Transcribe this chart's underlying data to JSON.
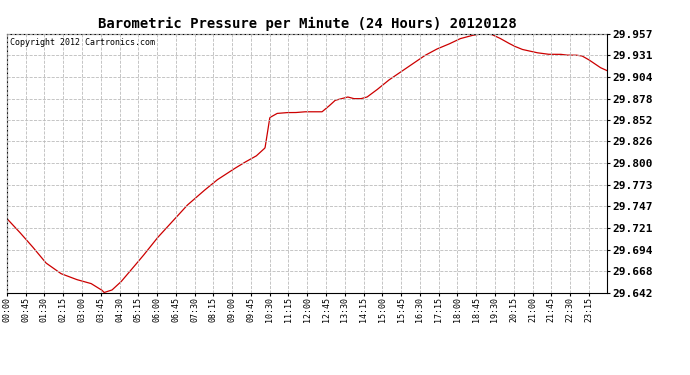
{
  "title": "Barometric Pressure per Minute (24 Hours) 20120128",
  "copyright": "Copyright 2012 Cartronics.com",
  "line_color": "#cc0000",
  "background_color": "#ffffff",
  "plot_bg_color": "#ffffff",
  "grid_color": "#bbbbbb",
  "ylim": [
    29.642,
    29.957
  ],
  "yticks": [
    29.642,
    29.668,
    29.694,
    29.721,
    29.747,
    29.773,
    29.8,
    29.826,
    29.852,
    29.878,
    29.904,
    29.931,
    29.957
  ],
  "xtick_labels": [
    "00:00",
    "00:45",
    "01:30",
    "02:15",
    "03:00",
    "03:45",
    "04:30",
    "05:15",
    "06:00",
    "06:45",
    "07:30",
    "08:15",
    "09:00",
    "09:45",
    "10:30",
    "11:15",
    "12:00",
    "12:45",
    "13:30",
    "14:15",
    "15:00",
    "15:45",
    "16:30",
    "17:15",
    "18:00",
    "18:45",
    "19:30",
    "20:15",
    "21:00",
    "21:45",
    "22:30",
    "23:15"
  ],
  "keypoints": [
    [
      0.0,
      29.732
    ],
    [
      0.018,
      29.718
    ],
    [
      0.04,
      29.7
    ],
    [
      0.065,
      29.678
    ],
    [
      0.09,
      29.665
    ],
    [
      0.115,
      29.658
    ],
    [
      0.14,
      29.653
    ],
    [
      0.158,
      29.645
    ],
    [
      0.162,
      29.642
    ],
    [
      0.175,
      29.645
    ],
    [
      0.19,
      29.655
    ],
    [
      0.205,
      29.668
    ],
    [
      0.225,
      29.685
    ],
    [
      0.25,
      29.708
    ],
    [
      0.275,
      29.728
    ],
    [
      0.3,
      29.748
    ],
    [
      0.325,
      29.764
    ],
    [
      0.35,
      29.779
    ],
    [
      0.375,
      29.791
    ],
    [
      0.395,
      29.8
    ],
    [
      0.415,
      29.808
    ],
    [
      0.43,
      29.818
    ],
    [
      0.438,
      29.855
    ],
    [
      0.45,
      29.86
    ],
    [
      0.465,
      29.861
    ],
    [
      0.48,
      29.861
    ],
    [
      0.495,
      29.862
    ],
    [
      0.51,
      29.862
    ],
    [
      0.525,
      29.862
    ],
    [
      0.535,
      29.868
    ],
    [
      0.547,
      29.876
    ],
    [
      0.558,
      29.878
    ],
    [
      0.568,
      29.88
    ],
    [
      0.578,
      29.878
    ],
    [
      0.59,
      29.878
    ],
    [
      0.6,
      29.88
    ],
    [
      0.615,
      29.888
    ],
    [
      0.635,
      29.9
    ],
    [
      0.655,
      29.91
    ],
    [
      0.675,
      29.92
    ],
    [
      0.695,
      29.93
    ],
    [
      0.715,
      29.938
    ],
    [
      0.735,
      29.944
    ],
    [
      0.755,
      29.951
    ],
    [
      0.775,
      29.955
    ],
    [
      0.792,
      29.957
    ],
    [
      0.808,
      29.956
    ],
    [
      0.82,
      29.952
    ],
    [
      0.832,
      29.947
    ],
    [
      0.845,
      29.942
    ],
    [
      0.858,
      29.938
    ],
    [
      0.87,
      29.936
    ],
    [
      0.882,
      29.934
    ],
    [
      0.892,
      29.933
    ],
    [
      0.902,
      29.932
    ],
    [
      0.912,
      29.932
    ],
    [
      0.922,
      29.932
    ],
    [
      0.932,
      29.931
    ],
    [
      0.94,
      29.931
    ],
    [
      0.948,
      29.931
    ],
    [
      0.958,
      29.93
    ],
    [
      0.968,
      29.926
    ],
    [
      0.978,
      29.921
    ],
    [
      0.988,
      29.916
    ],
    [
      1.0,
      29.912
    ]
  ]
}
